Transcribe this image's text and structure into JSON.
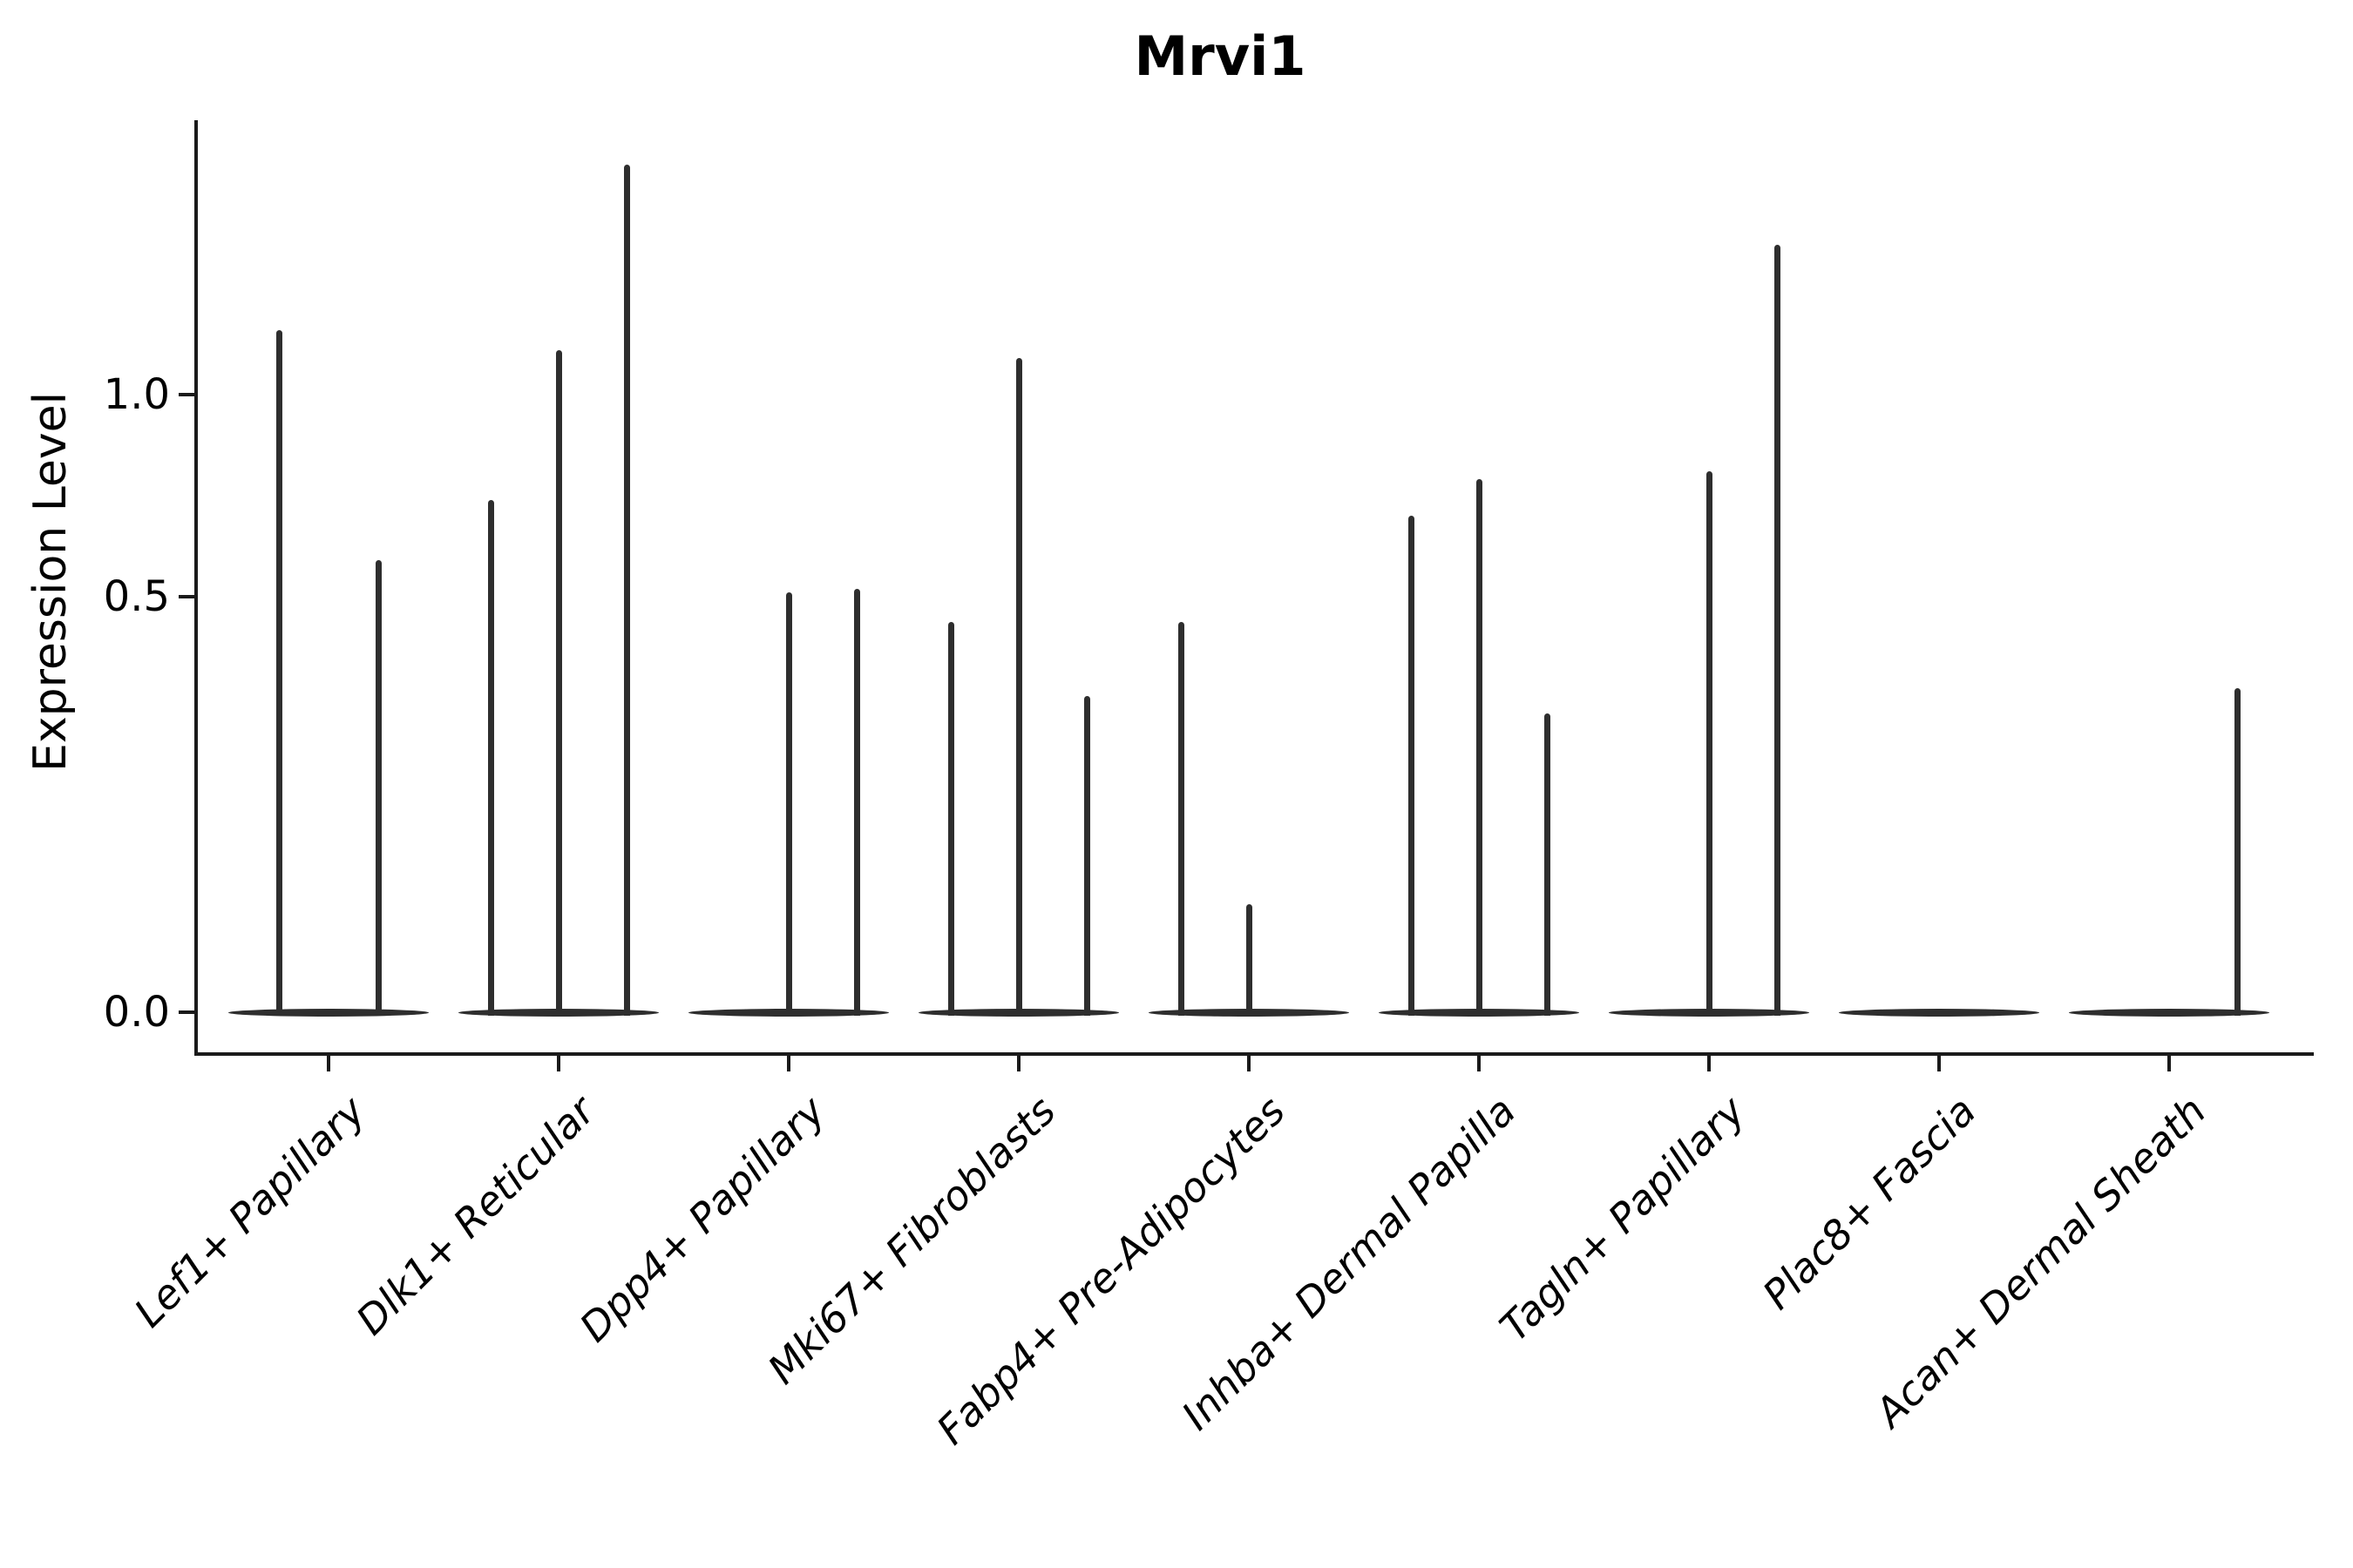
{
  "title": "Mrvi1",
  "axes": {
    "ylabel": "Expression Level",
    "ytick_labels": [
      "1.0",
      "0.5",
      "0.0"
    ]
  },
  "colors": {
    "violin": "#2e2e2e",
    "axis": "#1a1a1a",
    "text": "#000000",
    "background": "#ffffff"
  },
  "chart_data": {
    "type": "violin",
    "title": "Mrvi1",
    "xlabel": "",
    "ylabel": "Expression Level",
    "yticks": [
      0.0,
      0.5,
      1.0
    ],
    "yaxis_note": "non-linear tick spacing: the 0.5 tick sits ~67% of the way up the 0-to-1.0 span",
    "legend": "none",
    "grid": false,
    "categories": [
      "Lef1+ Papillary",
      "Dlk1+ Reticular",
      "Dpp4+ Papillary",
      "Mki67+ Fibroblasts",
      "Fabp4+ Pre-Adipocytes",
      "Inhba+ Dermal Papilla",
      "Tagln+ Papillary",
      "Plac8+ Fascia",
      "Acan+ Dermal Sheath"
    ],
    "description": "Each category shows 2-3 needle-thin violins: a flat horizontal base at expression 0 (most cells) with a thin vertical spike reaching the peak expression value; peak 0 means a fully flat violin.",
    "groups": [
      {
        "category": "Lef1+ Papillary",
        "violins": [
          {
            "peak": 1.16
          },
          {
            "peak": 0.59
          }
        ]
      },
      {
        "category": "Dlk1+ Reticular",
        "violins": [
          {
            "peak": 0.74
          },
          {
            "peak": 1.11
          },
          {
            "peak": 1.57
          }
        ]
      },
      {
        "category": "Dpp4+ Papillary",
        "violins": [
          {
            "peak": 0
          },
          {
            "peak": 0.51
          },
          {
            "peak": 0.52
          }
        ]
      },
      {
        "category": "Mki67+ Fibroblasts",
        "violins": [
          {
            "peak": 0.47
          },
          {
            "peak": 1.09
          },
          {
            "peak": 0.38
          }
        ]
      },
      {
        "category": "Fabp4+ Pre-Adipocytes",
        "violins": [
          {
            "peak": 0.47
          },
          {
            "peak": 0.13
          },
          {
            "peak": 0
          }
        ]
      },
      {
        "category": "Inhba+ Dermal Papilla",
        "violins": [
          {
            "peak": 0.7
          },
          {
            "peak": 0.79
          },
          {
            "peak": 0.36
          }
        ]
      },
      {
        "category": "Tagln+ Papillary",
        "violins": [
          {
            "peak": 0
          },
          {
            "peak": 0.81
          },
          {
            "peak": 1.37
          }
        ]
      },
      {
        "category": "Plac8+ Fascia",
        "violins": [
          {
            "peak": 0
          },
          {
            "peak": 0
          },
          {
            "peak": 0
          }
        ]
      },
      {
        "category": "Acan+ Dermal Sheath",
        "violins": [
          {
            "peak": 0
          },
          {
            "peak": 0
          },
          {
            "peak": 0.39
          }
        ]
      }
    ]
  }
}
